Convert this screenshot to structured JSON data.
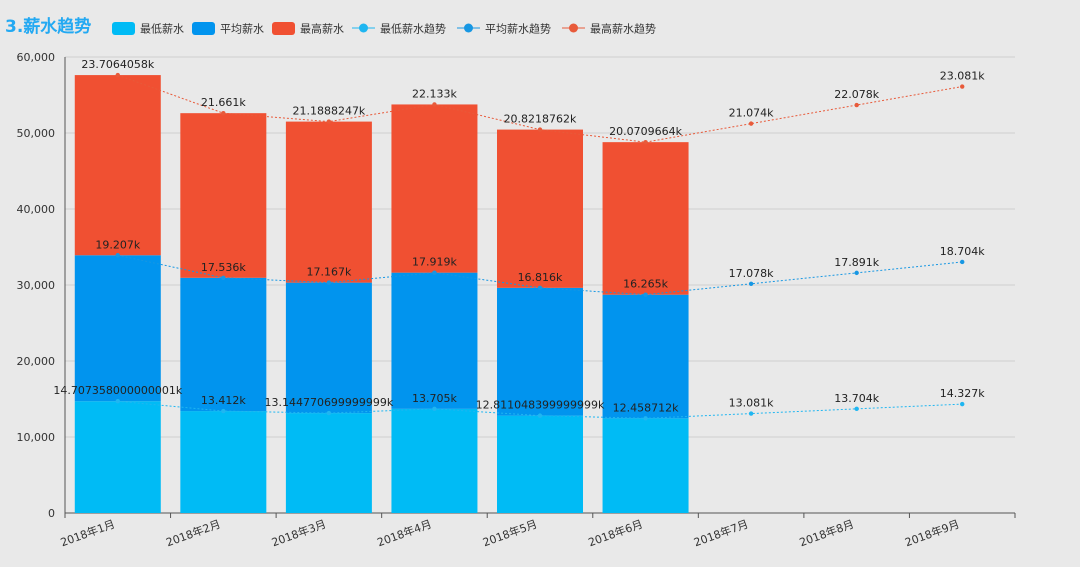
{
  "page": {
    "title": "3.薪水趋势"
  },
  "colors": {
    "min": "#00bbf5",
    "avg": "#0194ee",
    "max": "#f05032",
    "min_trend": "#1fb6f1",
    "avg_trend": "#1797e3",
    "max_trend": "#e85a3a"
  },
  "chart_data": {
    "type": "bar",
    "stacked": true,
    "categories": [
      "2018年1月",
      "2018年2月",
      "2018年3月",
      "2018年4月",
      "2018年5月",
      "2018年6月",
      "2018年7月",
      "2018年8月",
      "2018年9月"
    ],
    "yticks": [
      "0",
      "10,000",
      "20,000",
      "30,000",
      "40,000",
      "50,000",
      "60,000"
    ],
    "ylim": [
      0,
      60000
    ],
    "grid": true,
    "legend_position": "top",
    "series": [
      {
        "name": "最低薪水",
        "type": "bar",
        "values": [
          14707,
          13412,
          13145,
          13705,
          12811,
          12459,
          null,
          null,
          null
        ]
      },
      {
        "name": "平均薪水",
        "type": "bar",
        "values": [
          19207,
          17536,
          17167,
          17919,
          16816,
          16265,
          null,
          null,
          null
        ]
      },
      {
        "name": "最高薪水",
        "type": "bar",
        "values": [
          23706,
          21661,
          21189,
          22133,
          20822,
          20071,
          null,
          null,
          null
        ]
      },
      {
        "name": "最低薪水趋势",
        "type": "line",
        "values": [
          14707,
          13412,
          13145,
          13705,
          12811,
          12459,
          13081,
          13704,
          14327
        ],
        "labels": [
          "14.707358000000001k",
          "13.412k",
          "13.144770699999999k",
          "13.705k",
          "12.811048399999999k",
          "12.458712k",
          "13.081k",
          "13.704k",
          "14.327k"
        ]
      },
      {
        "name": "平均薪水趋势",
        "type": "line",
        "values": [
          33914,
          30948,
          30312,
          31624,
          29627,
          28724,
          30159,
          31595,
          33031
        ],
        "labels": [
          "19.207k",
          "17.536k",
          "17.167k",
          "17.919k",
          "16.816k",
          "16.265k",
          "17.078k",
          "17.891k",
          "18.704k"
        ]
      },
      {
        "name": "最高薪水趋势",
        "type": "line",
        "values": [
          57620,
          52609,
          51501,
          53757,
          50449,
          48795,
          51233,
          53673,
          56112
        ],
        "labels": [
          "23.7064058k",
          "21.661k",
          "21.1888247k",
          "22.133k",
          "20.8218762k",
          "20.0709664k",
          "21.074k",
          "22.078k",
          "23.081k"
        ]
      }
    ]
  }
}
